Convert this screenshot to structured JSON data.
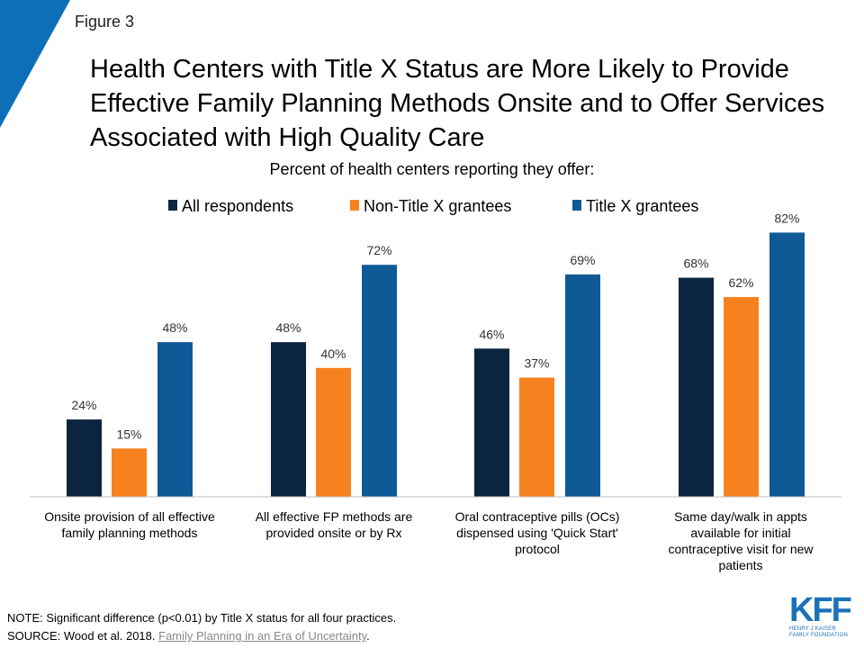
{
  "figure_label": "Figure 3",
  "title": "Health Centers with Title X Status are More Likely to Provide Effective Family Planning Methods Onsite and to Offer Services Associated with High Quality Care",
  "note": {
    "line1": "NOTE: Significant difference (p<0.01) by Title X status for all four practices.",
    "source_prefix": "SOURCE: Wood et al.  2018. ",
    "source_link": "Family Planning in an Era of Uncertainty",
    "source_suffix": "."
  },
  "logo": {
    "main": "KFF",
    "line1": "HENRY J KAISER",
    "line2": "FAMILY FOUNDATION"
  },
  "colors": {
    "accent_corner": "#0d6fb8"
  },
  "chart_data": {
    "type": "bar",
    "title": "Percent of health centers reporting they offer:",
    "categories": [
      "Onsite provision of all effective family planning methods",
      "All effective FP methods are provided onsite or by Rx",
      "Oral contraceptive pills (OCs) dispensed using 'Quick Start' protocol",
      "Same day/walk in appts available for initial contraceptive visit for new patients"
    ],
    "category_lines": [
      [
        "Onsite provision of all effective",
        "family planning methods"
      ],
      [
        "All effective FP methods are",
        "provided onsite or by Rx"
      ],
      [
        "Oral contraceptive pills (OCs)",
        "dispensed using 'Quick Start'",
        "protocol"
      ],
      [
        "Same day/walk in appts",
        "available for initial",
        "contraceptive visit for new",
        "patients"
      ]
    ],
    "series": [
      {
        "name": "All respondents",
        "color": "#0b2540",
        "values": [
          24,
          48,
          46,
          68
        ],
        "labels": [
          "24%",
          "48%",
          "46%",
          "68%"
        ]
      },
      {
        "name": "Non-Title X grantees",
        "color": "#f5821f",
        "values": [
          15,
          40,
          37,
          62
        ],
        "labels": [
          "15%",
          "40%",
          "37%",
          "62%"
        ]
      },
      {
        "name": "Title X grantees",
        "color": "#0e5a96",
        "values": [
          48,
          72,
          69,
          82
        ],
        "labels": [
          "48%",
          "72%",
          "69%",
          "82%"
        ]
      }
    ],
    "ylim": [
      0,
      100
    ],
    "legend_position": "top",
    "grid": false
  }
}
